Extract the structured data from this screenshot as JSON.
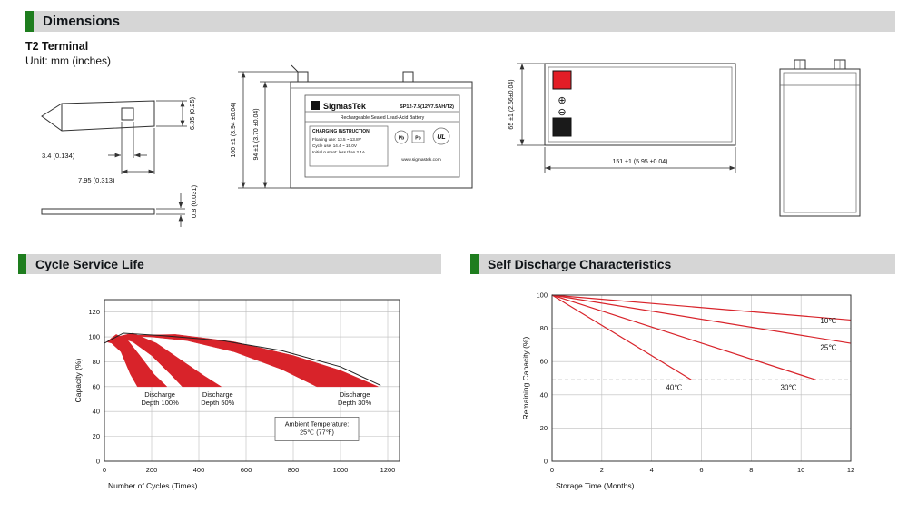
{
  "sections": {
    "dimensions": "Dimensions",
    "cycle": "Cycle Service Life",
    "self_discharge": "Self Discharge Characteristics"
  },
  "colors": {
    "accent_green": "#1e7d1e",
    "chart_red": "#d8232a",
    "terminal_red": "#e31e26",
    "terminal_black": "#1a1a1a"
  },
  "dims": {
    "terminal_type": "T2 Terminal",
    "unit_note": "Unit: mm (inches)",
    "terminal": {
      "hole_width": "3.4 (0.134)",
      "tip_width": "7.95 (0.313)",
      "height": "6.35 (0.25)",
      "thickness": "0.8 (0.031)"
    },
    "front": {
      "brand": "SigmasTek",
      "model": "SP12-7.5(12V7.5AH/T2)",
      "type_line": "Rechargeable Sealed Lead-Acid Battery",
      "charging_title": "CHARGING INSTRUCTION",
      "charging_1": "Floating use: 13.5 ~ 13.8V",
      "charging_2": "Cycle use: 14.4 ~ 15.0V",
      "charging_3": "Initial current: less than 2.1A",
      "website": "www.sigmastek.com",
      "pb": "Pb",
      "ul": "UL",
      "height_total": "100 ±1 (3.94 ±0.04)",
      "height_case": "94 ±1 (3.70 ±0.04)"
    },
    "top": {
      "plus": "⊕",
      "minus": "⊖",
      "depth": "65 ±1 (2.56±0.04)",
      "width": "151 ±1 (5.95 ±0.04)"
    }
  },
  "chart_data": [
    {
      "id": "cycle",
      "type": "area",
      "title": "Cycle Service Life",
      "xlabel": "Number of Cycles (Times)",
      "ylabel": "Capacity (%)",
      "xlim": [
        0,
        1250
      ],
      "ylim": [
        0,
        130
      ],
      "xticks": [
        0,
        200,
        400,
        600,
        800,
        1000,
        1200
      ],
      "yticks": [
        0,
        20,
        40,
        60,
        80,
        100,
        120
      ],
      "grid": true,
      "legend": "none",
      "band_color": "#d8232a",
      "bands": [
        {
          "name": "Discharge Depth 100%",
          "points": [
            [
              10,
              96
            ],
            [
              50,
              102
            ],
            [
              100,
              97
            ],
            [
              150,
              85
            ],
            [
              210,
              70
            ],
            [
              265,
              60
            ],
            [
              140,
              60
            ],
            [
              110,
              70
            ],
            [
              70,
              88
            ],
            [
              30,
              95
            ]
          ],
          "label_lines": [
            "Discharge",
            "Depth 100%"
          ],
          "label_x": 235,
          "label_y": 52
        },
        {
          "name": "Discharge Depth 50%",
          "points": [
            [
              30,
              99
            ],
            [
              120,
              103
            ],
            [
              220,
              95
            ],
            [
              320,
              82
            ],
            [
              420,
              69
            ],
            [
              495,
              60
            ],
            [
              330,
              60
            ],
            [
              280,
              70
            ],
            [
              200,
              85
            ],
            [
              120,
              96
            ],
            [
              60,
              100
            ]
          ],
          "label_lines": [
            "Discharge",
            "Depth 50%"
          ],
          "label_x": 480,
          "label_y": 52
        },
        {
          "name": "Discharge Depth 30%",
          "points": [
            [
              80,
              101
            ],
            [
              300,
              102
            ],
            [
              550,
              96
            ],
            [
              800,
              85
            ],
            [
              1000,
              73
            ],
            [
              1160,
              60
            ],
            [
              900,
              60
            ],
            [
              750,
              74
            ],
            [
              550,
              88
            ],
            [
              350,
              97
            ],
            [
              200,
              100
            ]
          ],
          "label_lines": [
            "Discharge",
            "Depth 30%"
          ],
          "label_x": 1060,
          "label_y": 52
        }
      ],
      "curves": [
        {
          "color": "#222222",
          "points": [
            [
              0,
              95
            ],
            [
              80,
              103
            ],
            [
              250,
              101
            ],
            [
              500,
              97
            ],
            [
              750,
              89
            ],
            [
              1000,
              76
            ],
            [
              1170,
              61
            ]
          ]
        }
      ],
      "annotations": [
        {
          "lines": [
            "Ambient Temperature:",
            "25℃ (77℉)"
          ],
          "x": 900,
          "y": 26,
          "box": true
        }
      ]
    },
    {
      "id": "selfdischarge",
      "type": "line",
      "title": "Self Discharge Characteristics",
      "xlabel": "Storage Time (Months)",
      "ylabel": "Remaining Capacity (%)",
      "xlim": [
        0,
        12
      ],
      "ylim": [
        0,
        100
      ],
      "xticks": [
        0,
        2,
        4,
        6,
        8,
        10,
        12
      ],
      "yticks": [
        0,
        20,
        40,
        60,
        80,
        100
      ],
      "grid": true,
      "legend": "inline",
      "line_color": "#d8232a",
      "dashed_y": 49,
      "series": [
        {
          "name": "10℃",
          "points": [
            [
              0,
              100
            ],
            [
              12,
              85
            ]
          ],
          "label": "10℃",
          "label_x": 11.1,
          "label_y": 83
        },
        {
          "name": "25℃",
          "points": [
            [
              0,
              100
            ],
            [
              12,
              71
            ]
          ],
          "label": "25℃",
          "label_x": 11.1,
          "label_y": 67
        },
        {
          "name": "30℃",
          "points": [
            [
              0,
              100
            ],
            [
              10.6,
              49
            ]
          ],
          "label": "30℃",
          "label_x": 9.5,
          "label_y": 43
        },
        {
          "name": "40℃",
          "points": [
            [
              0,
              100
            ],
            [
              5.6,
              49
            ]
          ],
          "label": "40℃",
          "label_x": 4.9,
          "label_y": 43
        }
      ]
    }
  ]
}
